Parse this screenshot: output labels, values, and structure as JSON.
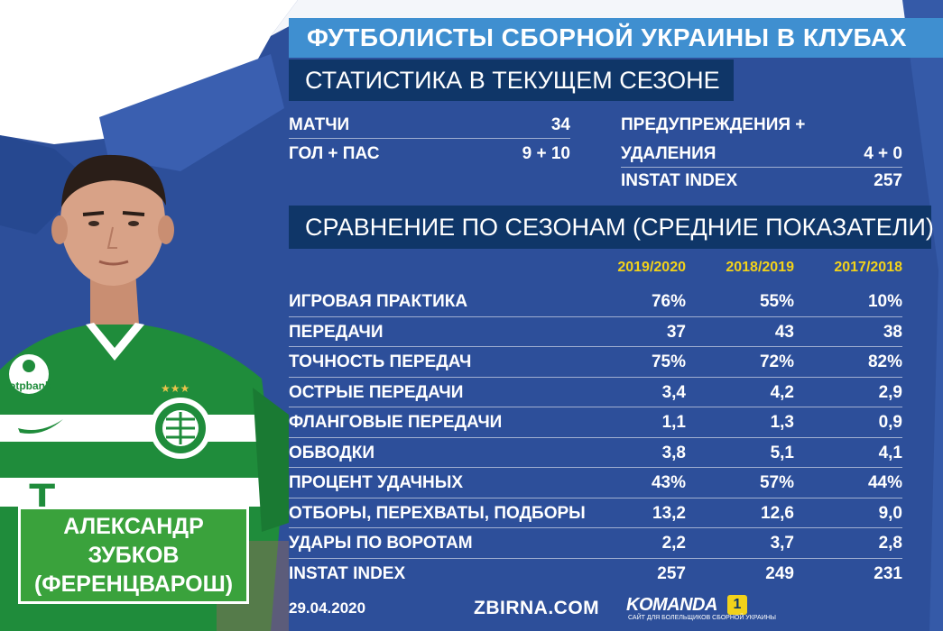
{
  "title": "ФУТБОЛИСТЫ СБОРНОЙ УКРАИНЫ В КЛУБАХ",
  "subtitle": "СТАТИСТИКА В ТЕКУЩЕМ СЕЗОНЕ",
  "current_season": {
    "left": [
      {
        "label": "МАТЧИ",
        "value": "34"
      },
      {
        "label": "ГОЛ + ПАС",
        "value": "9 + 10"
      }
    ],
    "right": [
      {
        "label": "ПРЕДУПРЕЖДЕНИЯ +",
        "value": ""
      },
      {
        "label": "УДАЛЕНИЯ",
        "value": "4 + 0"
      },
      {
        "label": "INSTAT INDEX",
        "value": "257"
      }
    ]
  },
  "comparison": {
    "title": "СРАВНЕНИЕ ПО СЕЗОНАМ (СРЕДНИЕ ПОКАЗАТЕЛИ)",
    "seasons": [
      "2019/2020",
      "2018/2019",
      "2017/2018"
    ],
    "rows": [
      {
        "label": "ИГРОВАЯ ПРАКТИКА",
        "values": [
          "76%",
          "55%",
          "10%"
        ]
      },
      {
        "label": "ПЕРЕДАЧИ",
        "values": [
          "37",
          "43",
          "38"
        ]
      },
      {
        "label": "ТОЧНОСТЬ ПЕРЕДАЧ",
        "values": [
          "75%",
          "72%",
          "82%"
        ]
      },
      {
        "label": "ОСТРЫЕ ПЕРЕДАЧИ",
        "values": [
          "3,4",
          "4,2",
          "2,9"
        ]
      },
      {
        "label": "ФЛАНГОВЫЕ ПЕРЕДАЧИ",
        "values": [
          "1,1",
          "1,3",
          "0,9"
        ]
      },
      {
        "label": "ОБВОДКИ",
        "values": [
          "3,8",
          "5,1",
          "4,1"
        ]
      },
      {
        "label": "ПРОЦЕНТ УДАЧНЫХ",
        "values": [
          "43%",
          "57%",
          "44%"
        ]
      },
      {
        "label": "ОТБОРЫ, ПЕРЕХВАТЫ, ПОДБОРЫ",
        "values": [
          "13,2",
          "12,6",
          "9,0"
        ]
      },
      {
        "label": "УДАРЫ ПО ВОРОТАМ",
        "values": [
          "2,2",
          "3,7",
          "2,8"
        ]
      },
      {
        "label": "INSTAT INDEX",
        "values": [
          "257",
          "249",
          "231"
        ]
      }
    ]
  },
  "player": {
    "first_name": "АЛЕКСАНДР",
    "last_name": "ЗУБКОВ",
    "club": "(ФЕРЕНЦВАРОШ)",
    "jersey_sponsor": "otpbank",
    "jersey_letter": "T"
  },
  "footer": {
    "date": "29.04.2020",
    "site": "ZBIRNA.COM",
    "logo_brand": "KOMANDA",
    "logo_number": "1",
    "logo_tagline": "САЙТ ДЛЯ БОЛЕЛЬЩИКОВ СБОРНОЙ УКРАИНЫ"
  },
  "colors": {
    "background": "#2d4f9a",
    "title_banner": "#3f8fd0",
    "sub_banner": "#0f3668",
    "season_header": "#f2d21a",
    "name_box": "#3aa23c",
    "jersey_green": "#1f8c3b"
  }
}
